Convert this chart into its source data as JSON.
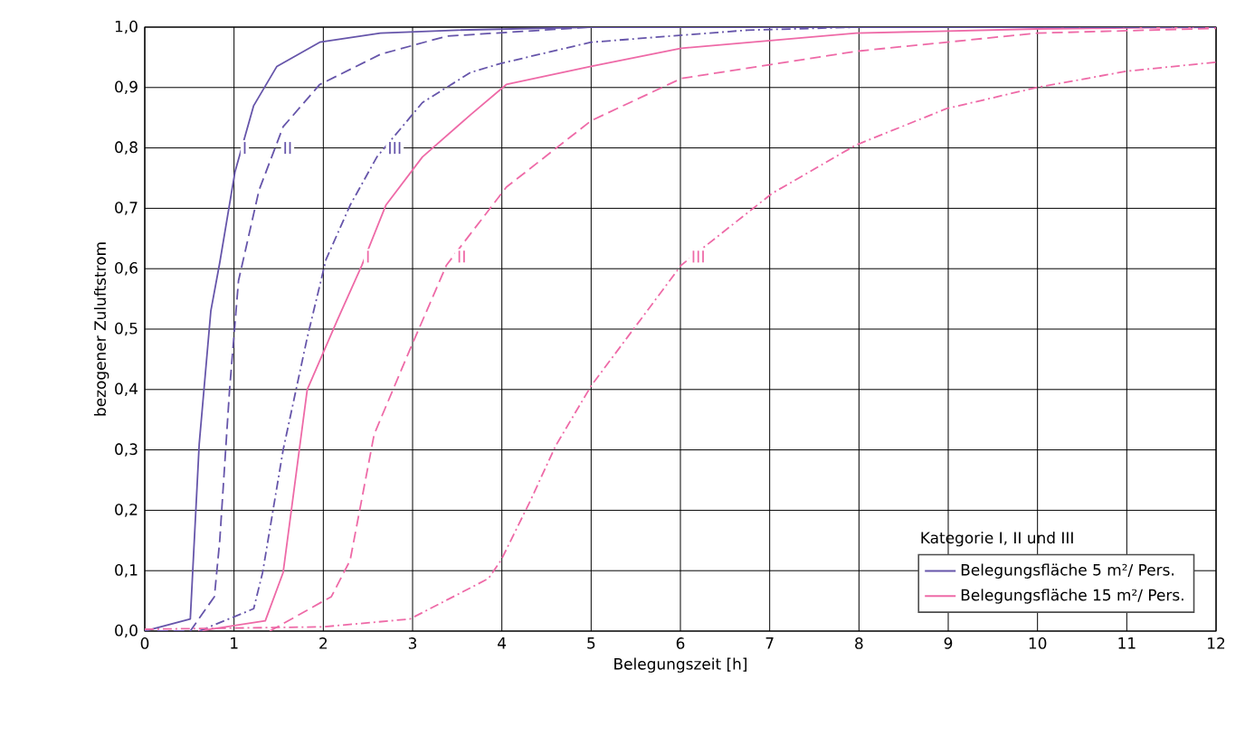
{
  "chart_data": {
    "type": "line",
    "xlabel": "Belegungszeit [h]",
    "ylabel": "bezogener Zuluftstrom",
    "legend_title": "Kategorie I, II und III",
    "legend": "bottom right",
    "grid": true,
    "xlim": [
      0,
      12
    ],
    "xticks": [
      0,
      1,
      2,
      3,
      4,
      5,
      6,
      7,
      8,
      9,
      10,
      11,
      12
    ],
    "ylim": [
      0,
      1
    ],
    "yticks": [
      {
        "value": 0,
        "label": "0,0"
      },
      {
        "value": 0.1,
        "label": "0,1"
      },
      {
        "value": 0.2,
        "label": "0,2"
      },
      {
        "value": 0.3,
        "label": "0,3"
      },
      {
        "value": 0.4,
        "label": "0,4"
      },
      {
        "value": 0.5,
        "label": "0,5"
      },
      {
        "value": 0.6,
        "label": "0,6"
      },
      {
        "value": 0.7,
        "label": "0,7"
      },
      {
        "value": 0.8,
        "label": "0,8"
      },
      {
        "value": 0.9,
        "label": "0,9"
      },
      {
        "value": 1.0,
        "label": "1,0"
      }
    ],
    "series": [
      {
        "name": "Belegungsfläche 5 m²/ Pers.",
        "color": "#6655aa",
        "line_style": "solid",
        "x": [
          0,
          0.51,
          0.61,
          0.74,
          0.84,
          1.01,
          1.22,
          1.48,
          1.96,
          2.64,
          3.5,
          5,
          7,
          12
        ],
        "values": [
          0,
          0.02,
          0.31,
          0.53,
          0.61,
          0.76,
          0.87,
          0.935,
          0.975,
          0.99,
          0.995,
          1.0,
          1.0,
          1.0
        ]
      },
      {
        "name": "Belegungsfläche 15 m²/ Pers.",
        "color": "#ee6aa7",
        "line_style": "solid",
        "x": [
          0.6,
          1.35,
          1.55,
          1.82,
          2.16,
          2.43,
          2.7,
          3.11,
          3.65,
          4.05,
          5,
          6.01,
          7.97,
          10,
          12
        ],
        "values": [
          0,
          0.017,
          0.097,
          0.4,
          0.516,
          0.605,
          0.705,
          0.785,
          0.855,
          0.905,
          0.935,
          0.965,
          0.99,
          0.997,
          1.0
        ]
      },
      {
        "color": "#6655aa",
        "line_style": "dashed",
        "x": [
          0.14,
          0.51,
          0.78,
          0.84,
          0.95,
          1.05,
          1.28,
          1.55,
          1.96,
          2.64,
          3.38,
          5,
          12
        ],
        "values": [
          0,
          0,
          0.057,
          0.15,
          0.4,
          0.58,
          0.73,
          0.835,
          0.905,
          0.955,
          0.985,
          1.0,
          1.0
        ]
      },
      {
        "color": "#6655aa",
        "line_style": "dashdot",
        "x": [
          0.61,
          1.22,
          1.32,
          1.55,
          1.82,
          2.03,
          2.3,
          2.6,
          3.11,
          3.65,
          3.99,
          5,
          6.75,
          8,
          12
        ],
        "values": [
          0,
          0.037,
          0.097,
          0.3,
          0.486,
          0.615,
          0.705,
          0.785,
          0.875,
          0.925,
          0.94,
          0.975,
          0.995,
          1.0,
          1.0
        ]
      },
      {
        "color": "#ee6aa7",
        "line_style": "dashed",
        "x": [
          1.4,
          2.09,
          2.3,
          2.57,
          2.97,
          3.38,
          4.05,
          5,
          6.01,
          7.97,
          9.99,
          12
        ],
        "values": [
          0,
          0.057,
          0.117,
          0.326,
          0.466,
          0.606,
          0.735,
          0.845,
          0.915,
          0.96,
          0.99,
          0.998
        ]
      },
      {
        "color": "#ee6aa7",
        "line_style": "dashdot",
        "x": [
          0,
          2,
          2.97,
          3.85,
          3.99,
          4.32,
          4.6,
          5,
          6.01,
          7.03,
          7.97,
          8.98,
          9.99,
          11,
          12
        ],
        "values": [
          0.003,
          0.007,
          0.02,
          0.087,
          0.117,
          0.216,
          0.306,
          0.406,
          0.606,
          0.725,
          0.805,
          0.865,
          0.9,
          0.927,
          0.942
        ]
      }
    ],
    "annotations": [
      {
        "text": "I",
        "x": 1.12,
        "y": 0.8
      },
      {
        "text": "II",
        "x": 1.6,
        "y": 0.8
      },
      {
        "text": "III",
        "x": 2.8,
        "y": 0.8
      },
      {
        "text": "I",
        "x": 2.5,
        "y": 0.62
      },
      {
        "text": "II",
        "x": 3.55,
        "y": 0.62
      },
      {
        "text": "III",
        "x": 6.2,
        "y": 0.62
      }
    ]
  }
}
